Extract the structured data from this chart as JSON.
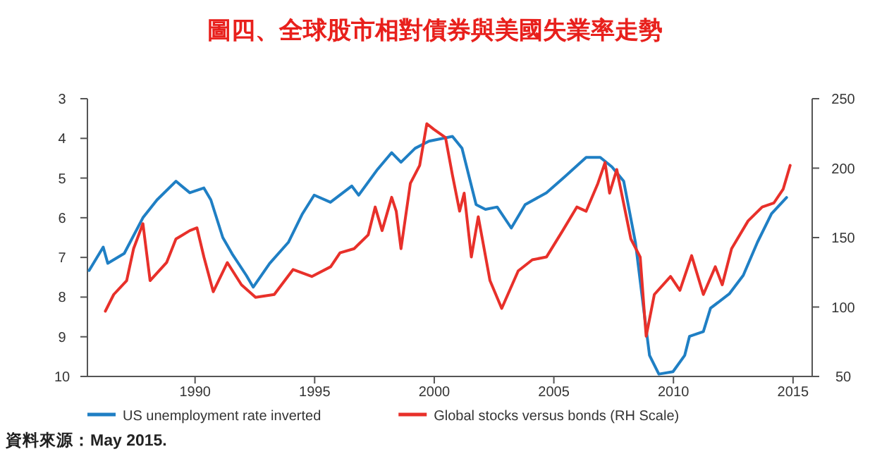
{
  "chart_data": {
    "type": "line",
    "title": "圖四、全球股市相對債券與美國失業率走勢",
    "annotations": [
      "資料來源：May 2015."
    ],
    "xlim": [
      1985.5,
      2015.8
    ],
    "xticks": [
      1990,
      1995,
      2000,
      2005,
      2010,
      2015
    ],
    "ylim": [
      10,
      3
    ],
    "yticks": [
      3,
      4,
      5,
      6,
      7,
      8,
      9,
      10
    ],
    "y2lim": [
      50,
      250
    ],
    "y2ticks": [
      50,
      100,
      150,
      200,
      250
    ],
    "grid": false,
    "legend": "bottom",
    "series": [
      {
        "name": "US unemployment rate inverted",
        "color": "#1f7fc4",
        "x": [
          1985.57,
          1986.16,
          1986.35,
          1987.04,
          1987.82,
          1988.41,
          1989.2,
          1989.78,
          1990.37,
          1990.66,
          1991.16,
          1991.55,
          1992.14,
          1992.43,
          1993.12,
          1993.9,
          1994.49,
          1994.98,
          1995.66,
          1996.55,
          1996.84,
          1997.63,
          1998.22,
          1998.61,
          1999.2,
          1999.78,
          2000.76,
          2001.16,
          2001.75,
          2002.14,
          2002.63,
          2003.22,
          2003.8,
          2004.69,
          2005.47,
          2006.35,
          2006.94,
          2007.43,
          2007.92,
          2008.41,
          2008.8,
          2009.0,
          2009.39,
          2009.98,
          2010.47,
          2010.67,
          2011.25,
          2011.55,
          2012.33,
          2012.92,
          2013.51,
          2014.1,
          2014.73
        ],
        "values": [
          7.33,
          6.74,
          7.15,
          6.9,
          6.0,
          5.55,
          5.08,
          5.37,
          5.25,
          5.55,
          6.5,
          6.91,
          7.45,
          7.75,
          7.15,
          6.62,
          5.9,
          5.43,
          5.61,
          5.2,
          5.43,
          4.78,
          4.36,
          4.6,
          4.25,
          4.07,
          3.95,
          4.25,
          5.67,
          5.79,
          5.73,
          6.26,
          5.67,
          5.37,
          4.96,
          4.48,
          4.48,
          4.72,
          5.08,
          6.62,
          8.52,
          9.47,
          9.94,
          9.88,
          9.47,
          8.99,
          8.87,
          8.28,
          7.92,
          7.45,
          6.62,
          5.9,
          5.49
        ]
      },
      {
        "name": "Global stocks versus bonds (RH Scale)",
        "color": "#e8302a",
        "axis": "y2",
        "x": [
          1986.25,
          1986.6,
          1987.14,
          1987.43,
          1987.82,
          1988.12,
          1988.81,
          1989.2,
          1989.78,
          1990.08,
          1990.37,
          1990.76,
          1991.35,
          1991.94,
          1992.53,
          1993.31,
          1994.1,
          1994.88,
          1995.67,
          1996.06,
          1996.65,
          1997.24,
          1997.53,
          1997.82,
          1998.22,
          1998.41,
          1998.61,
          1999.0,
          1999.39,
          1999.69,
          1999.98,
          2000.47,
          2000.76,
          2001.06,
          2001.25,
          2001.55,
          2001.84,
          2002.33,
          2002.82,
          2003.51,
          2004.1,
          2004.69,
          2005.37,
          2005.96,
          2006.35,
          2006.84,
          2007.14,
          2007.33,
          2007.63,
          2008.22,
          2008.61,
          2008.8,
          2008.86,
          2009.2,
          2009.88,
          2010.27,
          2010.76,
          2011.25,
          2011.75,
          2012.04,
          2012.43,
          2013.12,
          2013.71,
          2014.2,
          2014.59,
          2014.88
        ],
        "values": [
          97,
          109,
          119,
          142,
          160,
          119,
          132,
          149,
          155,
          157,
          136,
          111,
          132,
          116,
          107,
          109,
          127,
          122,
          129,
          139,
          142,
          152,
          172,
          155,
          179,
          169,
          142,
          189,
          202,
          232,
          228,
          222,
          195,
          169,
          182,
          136,
          165,
          119,
          99,
          126,
          134,
          136,
          155,
          172,
          169,
          189,
          204,
          182,
          199,
          149,
          136,
          92,
          79,
          109,
          122,
          112,
          137,
          109,
          129,
          116,
          142,
          162,
          172,
          175,
          185,
          202
        ]
      }
    ]
  }
}
